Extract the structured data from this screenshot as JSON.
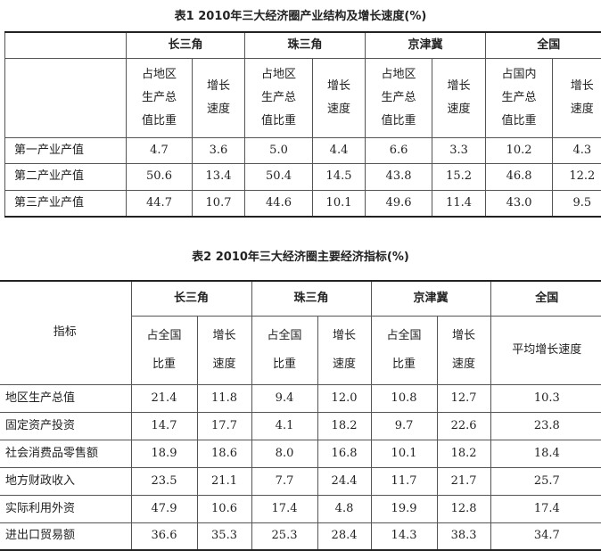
{
  "table1": {
    "title": "表1  2010年三大经济圈产业结构及增长速度(%)",
    "groups": [
      "长三角",
      "珠三角",
      "京津冀",
      "全国"
    ],
    "subheaders": [
      "占地区生产总值比重",
      "增长速度",
      "占地区生产总值比重",
      "增长速度",
      "占地区生产总值比重",
      "增长速度",
      "占国内生产总值比重",
      "增长速度"
    ],
    "rows": [
      {
        "label": "第一产业产值",
        "values": [
          "4.7",
          "3.6",
          "5.0",
          "4.4",
          "6.6",
          "3.3",
          "10.2",
          "4.3"
        ]
      },
      {
        "label": "第二产业产值",
        "values": [
          "50.6",
          "13.4",
          "50.4",
          "14.5",
          "43.8",
          "15.2",
          "46.8",
          "12.2"
        ]
      },
      {
        "label": "第三产业产值",
        "values": [
          "44.7",
          "10.7",
          "44.6",
          "10.1",
          "49.6",
          "11.4",
          "43.0",
          "9.5"
        ]
      }
    ]
  },
  "table2": {
    "title": "表2  2010年三大经济圈主要经济指标(%)",
    "row_header": "指标",
    "groups": [
      "长三角",
      "珠三角",
      "京津冀",
      "全国"
    ],
    "subheaders": [
      "占全国比重",
      "增长速度",
      "占全国比重",
      "增长速度",
      "占全国比重",
      "增长速度",
      "平均增长速度"
    ],
    "rows": [
      {
        "label": "地区生产总值",
        "values": [
          "21.4",
          "11.8",
          "9.4",
          "12.0",
          "10.8",
          "12.7",
          "10.3"
        ]
      },
      {
        "label": "固定资产投资",
        "values": [
          "14.7",
          "17.7",
          "4.1",
          "18.2",
          "9.7",
          "22.6",
          "23.8"
        ]
      },
      {
        "label": "社会消费品零售额",
        "values": [
          "18.9",
          "18.6",
          "8.0",
          "16.8",
          "10.1",
          "18.2",
          "18.4"
        ]
      },
      {
        "label": "地方财政收入",
        "values": [
          "23.5",
          "21.1",
          "7.7",
          "24.4",
          "11.7",
          "21.7",
          "25.7"
        ]
      },
      {
        "label": "实际利用外资",
        "values": [
          "47.9",
          "10.6",
          "17.4",
          "4.8",
          "19.9",
          "12.8",
          "17.4"
        ]
      },
      {
        "label": "进出口贸易额",
        "values": [
          "36.6",
          "35.3",
          "25.3",
          "28.4",
          "14.3",
          "38.3",
          "34.7"
        ]
      }
    ]
  }
}
